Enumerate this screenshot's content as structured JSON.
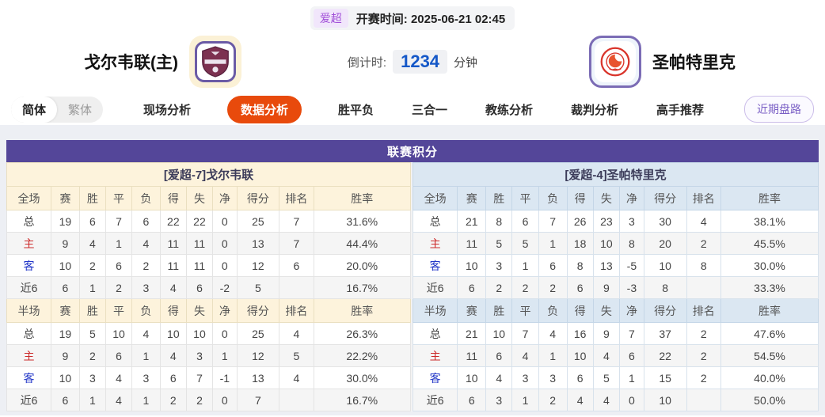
{
  "match_header": {
    "league_badge": "爱超",
    "kickoff_label": "开赛时间:",
    "kickoff_time": "2025-06-21 02:45",
    "home_team": "戈尔韦联(主)",
    "away_team": "圣帕特里克",
    "countdown_label": "倒计时:",
    "countdown_value": "1234",
    "countdown_unit": "分钟"
  },
  "lang_toggle": {
    "simplified": "简体",
    "traditional": "繁体"
  },
  "nav_tabs": [
    {
      "label": "现场分析",
      "active": false
    },
    {
      "label": "数据分析",
      "active": true
    },
    {
      "label": "胜平负",
      "active": false
    },
    {
      "label": "三合一",
      "active": false
    },
    {
      "label": "教练分析",
      "active": false
    },
    {
      "label": "裁判分析",
      "active": false
    },
    {
      "label": "高手推荐",
      "active": false
    }
  ],
  "recent_trend_button": "近期盘路",
  "colors": {
    "accent_purple": "#544699",
    "active_tab_red": "#e84a0c",
    "countdown_blue": "#1558c8",
    "left_header_cream": "#fdf3dc",
    "right_header_blue": "#dbe7f2"
  },
  "points_table": {
    "title": "联赛积分",
    "columns_full": [
      "全场",
      "赛",
      "胜",
      "平",
      "负",
      "得",
      "失",
      "净",
      "得分",
      "排名",
      "胜率"
    ],
    "columns_half": [
      "半场",
      "赛",
      "胜",
      "平",
      "负",
      "得",
      "失",
      "净",
      "得分",
      "排名",
      "胜率"
    ],
    "label_colors": {
      "主": "#cc2a2a",
      "客": "#2438c8"
    },
    "sides": [
      {
        "team_header": "[爱超-7]戈尔韦联",
        "full_rows": [
          {
            "label": "总",
            "values": [
              "19",
              "6",
              "7",
              "6",
              "22",
              "22",
              "0",
              "25",
              "7",
              "31.6%"
            ]
          },
          {
            "label": "主",
            "values": [
              "9",
              "4",
              "1",
              "4",
              "11",
              "11",
              "0",
              "13",
              "7",
              "44.4%"
            ]
          },
          {
            "label": "客",
            "values": [
              "10",
              "2",
              "6",
              "2",
              "11",
              "11",
              "0",
              "12",
              "6",
              "20.0%"
            ]
          },
          {
            "label": "近6",
            "values": [
              "6",
              "1",
              "2",
              "3",
              "4",
              "6",
              "-2",
              "5",
              "",
              "16.7%"
            ]
          }
        ],
        "half_rows": [
          {
            "label": "总",
            "values": [
              "19",
              "5",
              "10",
              "4",
              "10",
              "10",
              "0",
              "25",
              "4",
              "26.3%"
            ]
          },
          {
            "label": "主",
            "values": [
              "9",
              "2",
              "6",
              "1",
              "4",
              "3",
              "1",
              "12",
              "5",
              "22.2%"
            ]
          },
          {
            "label": "客",
            "values": [
              "10",
              "3",
              "4",
              "3",
              "6",
              "7",
              "-1",
              "13",
              "4",
              "30.0%"
            ]
          },
          {
            "label": "近6",
            "values": [
              "6",
              "1",
              "4",
              "1",
              "2",
              "2",
              "0",
              "7",
              "",
              "16.7%"
            ]
          }
        ]
      },
      {
        "team_header": "[爱超-4]圣帕特里克",
        "full_rows": [
          {
            "label": "总",
            "values": [
              "21",
              "8",
              "6",
              "7",
              "26",
              "23",
              "3",
              "30",
              "4",
              "38.1%"
            ]
          },
          {
            "label": "主",
            "values": [
              "11",
              "5",
              "5",
              "1",
              "18",
              "10",
              "8",
              "20",
              "2",
              "45.5%"
            ]
          },
          {
            "label": "客",
            "values": [
              "10",
              "3",
              "1",
              "6",
              "8",
              "13",
              "-5",
              "10",
              "8",
              "30.0%"
            ]
          },
          {
            "label": "近6",
            "values": [
              "6",
              "2",
              "2",
              "2",
              "6",
              "9",
              "-3",
              "8",
              "",
              "33.3%"
            ]
          }
        ],
        "half_rows": [
          {
            "label": "总",
            "values": [
              "21",
              "10",
              "7",
              "4",
              "16",
              "9",
              "7",
              "37",
              "2",
              "47.6%"
            ]
          },
          {
            "label": "主",
            "values": [
              "11",
              "6",
              "4",
              "1",
              "10",
              "4",
              "6",
              "22",
              "2",
              "54.5%"
            ]
          },
          {
            "label": "客",
            "values": [
              "10",
              "4",
              "3",
              "3",
              "6",
              "5",
              "1",
              "15",
              "2",
              "40.0%"
            ]
          },
          {
            "label": "近6",
            "values": [
              "6",
              "3",
              "1",
              "2",
              "4",
              "4",
              "0",
              "10",
              "",
              "50.0%"
            ]
          }
        ]
      }
    ]
  }
}
